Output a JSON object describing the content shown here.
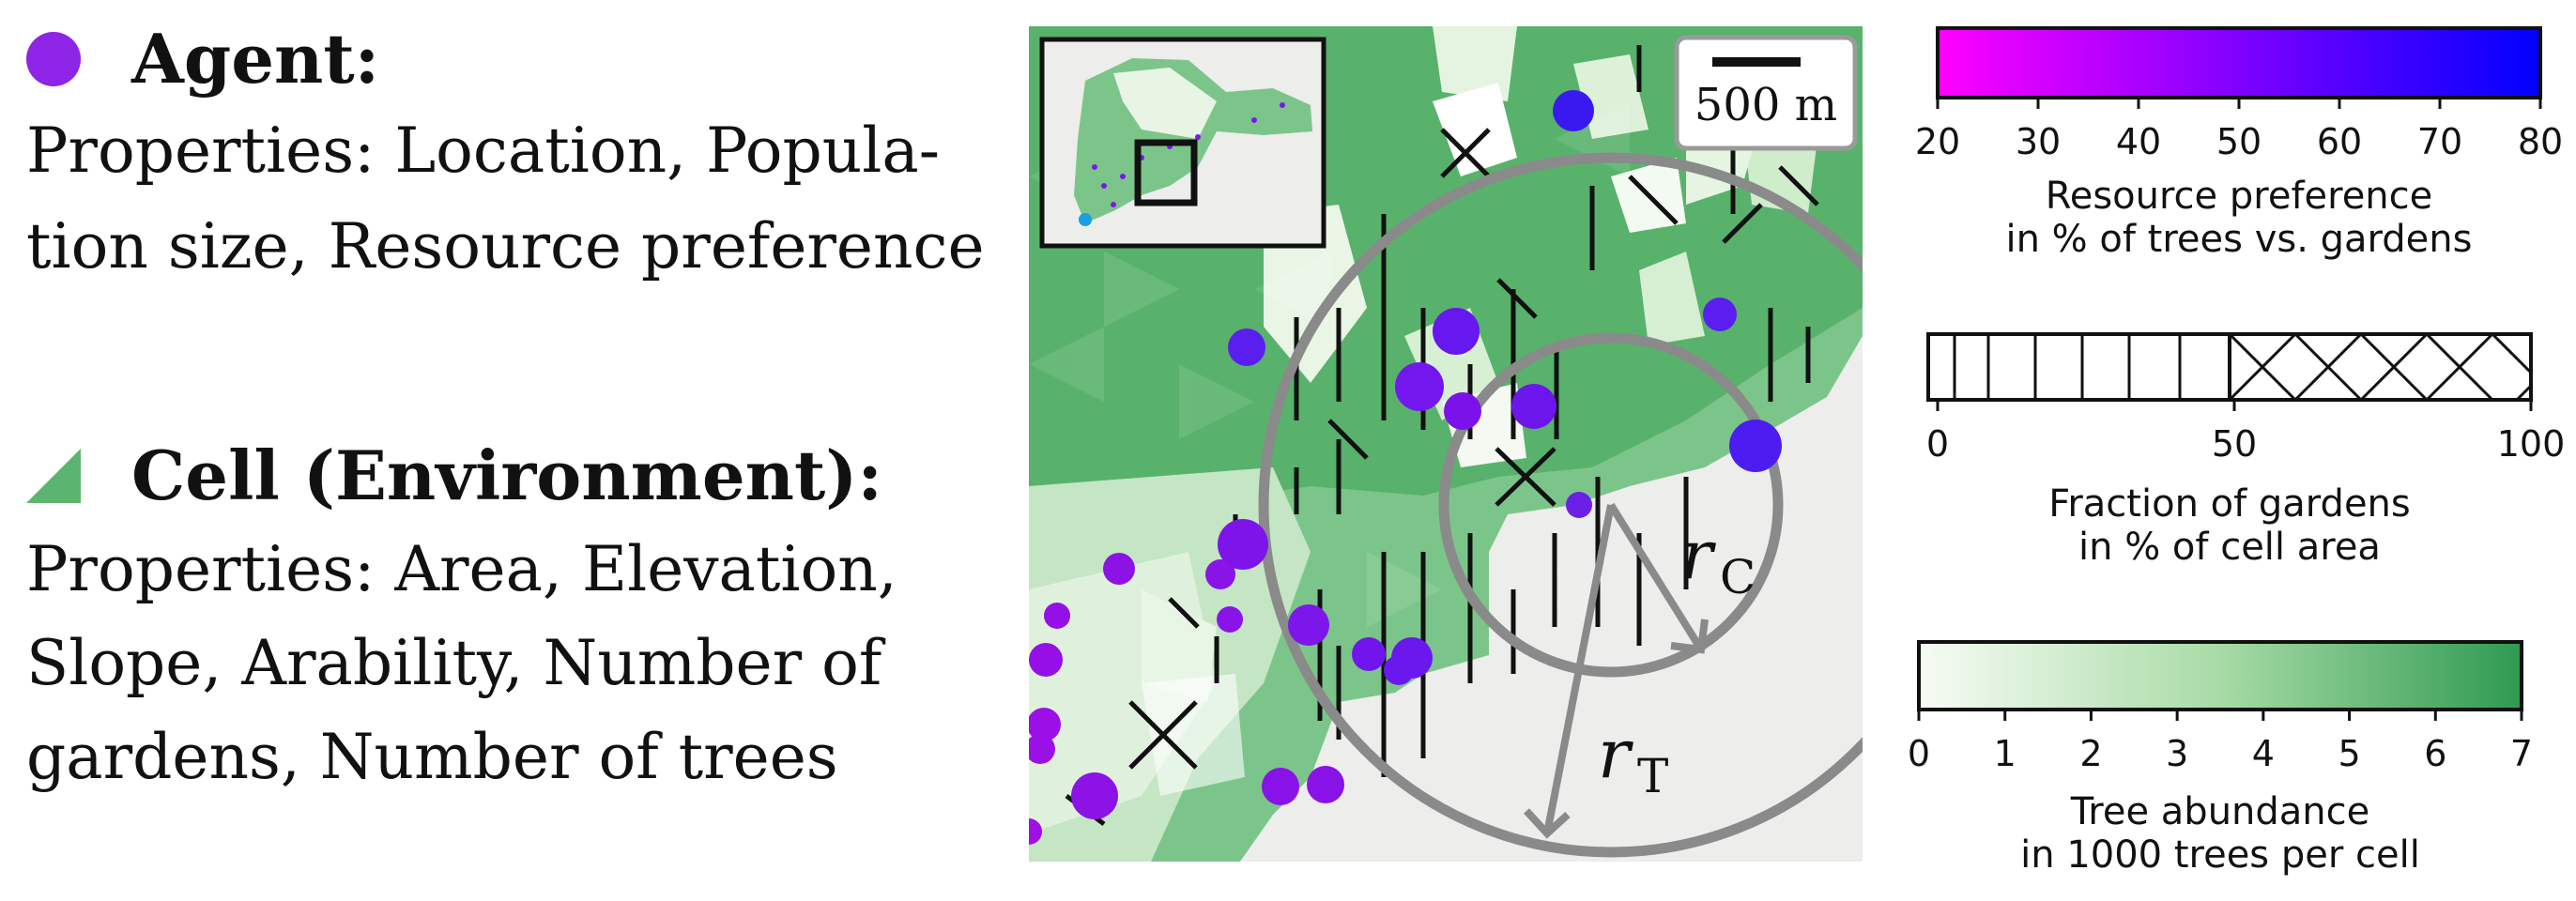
{
  "agent": {
    "title": "Agent:",
    "properties": [
      "Properties: Location, Popula-",
      "tion size, Resource preference"
    ],
    "marker_color": "#8d24e6"
  },
  "cell": {
    "title": "Cell (Environment):",
    "properties": [
      "Properties: Area, Elevation,",
      "Slope, Arability, Number of",
      "gardens, Number of trees"
    ],
    "marker_color": "#5cb56e"
  },
  "map": {
    "scale_bar_label": "500 m",
    "radius_core_label": "r",
    "radius_core_sub": "C",
    "radius_tree_label": "r",
    "radius_tree_sub": "T",
    "ring_color": "#8a8a8a",
    "background_color": "#ededeb"
  },
  "legends": {
    "resource": {
      "ticks": [
        "20",
        "30",
        "40",
        "50",
        "60",
        "70",
        "80"
      ],
      "label_line1": "Resource preference",
      "label_line2": "in % of trees vs. gardens",
      "range": [
        20,
        80
      ],
      "colors": [
        "#ff00ff",
        "#0000ff"
      ]
    },
    "gardens": {
      "ticks": [
        "0",
        "50",
        "100"
      ],
      "label_line1": "Fraction of gardens",
      "label_line2": "in % of cell area",
      "range": [
        0,
        100
      ]
    },
    "trees": {
      "ticks": [
        "0",
        "1",
        "2",
        "3",
        "4",
        "5",
        "6",
        "7"
      ],
      "label_line1": "Tree abundance",
      "label_line2": "in 1000 trees per cell",
      "range": [
        0,
        7
      ],
      "colors": [
        "#f7fcf5",
        "#2e9a52"
      ]
    }
  }
}
